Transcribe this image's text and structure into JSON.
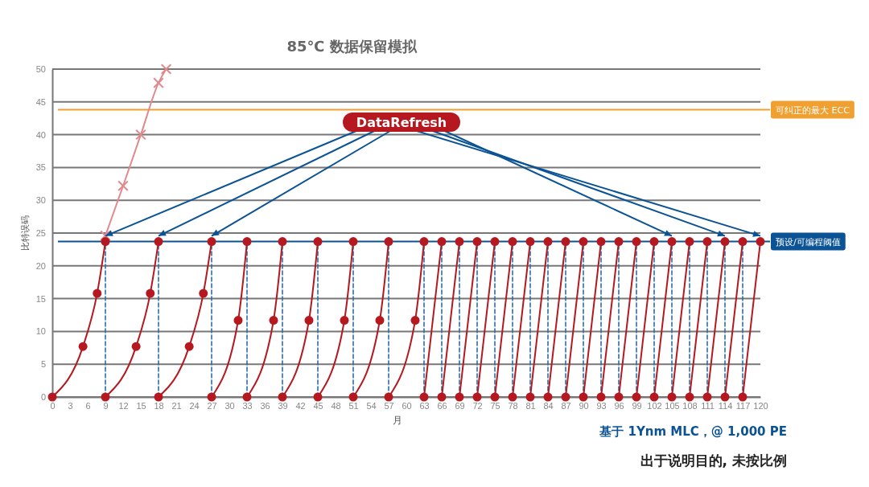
{
  "chart_data": {
    "type": "line",
    "title": "85℃ 数据保留模拟",
    "xlabel": "月",
    "ylabel": "比特误码",
    "xlim": [
      0,
      120
    ],
    "xticks": [
      0,
      3,
      6,
      9,
      12,
      15,
      18,
      21,
      24,
      27,
      30,
      33,
      36,
      39,
      42,
      45,
      48,
      51,
      54,
      57,
      60,
      63,
      66,
      69,
      72,
      75,
      78,
      81,
      84,
      87,
      90,
      93,
      96,
      99,
      102,
      105,
      108,
      111,
      114,
      117,
      120
    ],
    "ylim": [
      0,
      50
    ],
    "yticks": [
      0,
      5,
      10,
      15,
      20,
      25,
      30,
      35,
      40,
      45,
      50
    ],
    "grid": "y",
    "series": [
      {
        "color": "#b5191f",
        "marker": "circle",
        "x": [
          0,
          5.2,
          7.6,
          9
        ],
        "values": [
          0,
          7.7,
          15.8,
          23.7
        ]
      },
      {
        "color": "#b5191f",
        "marker": "circle",
        "x": [
          9,
          14.2,
          16.6,
          18
        ],
        "values": [
          0,
          7.7,
          15.8,
          23.7
        ]
      },
      {
        "color": "#b5191f",
        "marker": "circle",
        "x": [
          18,
          23.2,
          25.6,
          27
        ],
        "values": [
          0,
          7.7,
          15.8,
          23.7
        ]
      },
      {
        "color": "#b5191f",
        "marker": "circle",
        "x": [
          27,
          31.5,
          33
        ],
        "values": [
          0,
          11.7,
          23.7
        ]
      },
      {
        "color": "#b5191f",
        "marker": "circle",
        "x": [
          33,
          37.5,
          39
        ],
        "values": [
          0,
          11.7,
          23.7
        ]
      },
      {
        "color": "#b5191f",
        "marker": "circle",
        "x": [
          39,
          43.5,
          45
        ],
        "values": [
          0,
          11.7,
          23.7
        ]
      },
      {
        "color": "#b5191f",
        "marker": "circle",
        "x": [
          45,
          49.5,
          51
        ],
        "values": [
          0,
          11.7,
          23.7
        ]
      },
      {
        "color": "#b5191f",
        "marker": "circle",
        "x": [
          51,
          55.5,
          57
        ],
        "values": [
          0,
          11.7,
          23.7
        ]
      },
      {
        "color": "#b5191f",
        "marker": "circle",
        "x": [
          57,
          61.5,
          63
        ],
        "values": [
          0,
          11.7,
          23.7
        ]
      },
      {
        "color": "#b5191f",
        "marker": "circle",
        "x": [
          63,
          66
        ],
        "values": [
          0,
          23.7
        ]
      },
      {
        "color": "#b5191f",
        "marker": "circle",
        "x": [
          66,
          69
        ],
        "values": [
          0,
          23.7
        ]
      },
      {
        "color": "#b5191f",
        "marker": "circle",
        "x": [
          69,
          72
        ],
        "values": [
          0,
          23.7
        ]
      },
      {
        "color": "#b5191f",
        "marker": "circle",
        "x": [
          72,
          75
        ],
        "values": [
          0,
          23.7
        ]
      },
      {
        "color": "#b5191f",
        "marker": "circle",
        "x": [
          75,
          78
        ],
        "values": [
          0,
          23.7
        ]
      },
      {
        "color": "#b5191f",
        "marker": "circle",
        "x": [
          78,
          81
        ],
        "values": [
          0,
          23.7
        ]
      },
      {
        "color": "#b5191f",
        "marker": "circle",
        "x": [
          81,
          84
        ],
        "values": [
          0,
          23.7
        ]
      },
      {
        "color": "#b5191f",
        "marker": "circle",
        "x": [
          84,
          87
        ],
        "values": [
          0,
          23.7
        ]
      },
      {
        "color": "#b5191f",
        "marker": "circle",
        "x": [
          87,
          90
        ],
        "values": [
          0,
          23.7
        ]
      },
      {
        "color": "#b5191f",
        "marker": "circle",
        "x": [
          90,
          93
        ],
        "values": [
          0,
          23.7
        ]
      },
      {
        "color": "#b5191f",
        "marker": "circle",
        "x": [
          93,
          96
        ],
        "values": [
          0,
          23.7
        ]
      },
      {
        "color": "#b5191f",
        "marker": "circle",
        "x": [
          96,
          99
        ],
        "values": [
          0,
          23.7
        ]
      },
      {
        "color": "#b5191f",
        "marker": "circle",
        "x": [
          99,
          102
        ],
        "values": [
          0,
          23.7
        ]
      },
      {
        "color": "#b5191f",
        "marker": "circle",
        "x": [
          102,
          105
        ],
        "values": [
          0,
          23.7
        ]
      },
      {
        "color": "#b5191f",
        "marker": "circle",
        "x": [
          105,
          108
        ],
        "values": [
          0,
          23.7
        ]
      },
      {
        "color": "#b5191f",
        "marker": "circle",
        "x": [
          108,
          111
        ],
        "values": [
          0,
          23.7
        ]
      },
      {
        "color": "#b5191f",
        "marker": "circle",
        "x": [
          111,
          114
        ],
        "values": [
          0,
          23.7
        ]
      },
      {
        "color": "#b5191f",
        "marker": "circle",
        "x": [
          114,
          117
        ],
        "values": [
          0,
          23.7
        ]
      },
      {
        "color": "#b5191f",
        "marker": "circle",
        "x": [
          117,
          120
        ],
        "values": [
          0,
          23.7
        ]
      },
      {
        "color": "#e08a8e",
        "marker": "cross",
        "x": [
          9,
          12,
          15,
          18,
          19.3
        ],
        "values": [
          24.6,
          32.2,
          40,
          47.9,
          50
        ]
      },
      {
        "color": "#2e6da4",
        "marker": "none",
        "line_style": "dashed",
        "x": [
          9,
          9
        ],
        "values": [
          0,
          23.7
        ]
      },
      {
        "color": "#2e6da4",
        "marker": "none",
        "line_style": "dashed",
        "x": [
          18,
          18
        ],
        "values": [
          0,
          23.7
        ]
      },
      {
        "color": "#2e6da4",
        "marker": "none",
        "line_style": "dashed",
        "x": [
          27,
          27
        ],
        "values": [
          0,
          23.7
        ]
      },
      {
        "color": "#2e6da4",
        "marker": "none",
        "line_style": "dashed",
        "x": [
          33,
          33
        ],
        "values": [
          0,
          23.7
        ]
      },
      {
        "color": "#2e6da4",
        "marker": "none",
        "line_style": "dashed",
        "x": [
          39,
          39
        ],
        "values": [
          0,
          23.7
        ]
      },
      {
        "color": "#2e6da4",
        "marker": "none",
        "line_style": "dashed",
        "x": [
          45,
          45
        ],
        "values": [
          0,
          23.7
        ]
      },
      {
        "color": "#2e6da4",
        "marker": "none",
        "line_style": "dashed",
        "x": [
          51,
          51
        ],
        "values": [
          0,
          23.7
        ]
      },
      {
        "color": "#2e6da4",
        "marker": "none",
        "line_style": "dashed",
        "x": [
          57,
          57
        ],
        "values": [
          0,
          23.7
        ]
      },
      {
        "color": "#2e6da4",
        "marker": "none",
        "line_style": "dashed",
        "x": [
          63,
          63
        ],
        "values": [
          0,
          23.7
        ]
      },
      {
        "color": "#2e6da4",
        "marker": "none",
        "line_style": "dashed",
        "x": [
          66,
          66
        ],
        "values": [
          0,
          23.7
        ]
      },
      {
        "color": "#2e6da4",
        "marker": "none",
        "line_style": "dashed",
        "x": [
          69,
          69
        ],
        "values": [
          0,
          23.7
        ]
      },
      {
        "color": "#2e6da4",
        "marker": "none",
        "line_style": "dashed",
        "x": [
          72,
          72
        ],
        "values": [
          0,
          23.7
        ]
      },
      {
        "color": "#2e6da4",
        "marker": "none",
        "line_style": "dashed",
        "x": [
          75,
          75
        ],
        "values": [
          0,
          23.7
        ]
      },
      {
        "color": "#2e6da4",
        "marker": "none",
        "line_style": "dashed",
        "x": [
          78,
          78
        ],
        "values": [
          0,
          23.7
        ]
      },
      {
        "color": "#2e6da4",
        "marker": "none",
        "line_style": "dashed",
        "x": [
          81,
          81
        ],
        "values": [
          0,
          23.7
        ]
      },
      {
        "color": "#2e6da4",
        "marker": "none",
        "line_style": "dashed",
        "x": [
          84,
          84
        ],
        "values": [
          0,
          23.7
        ]
      },
      {
        "color": "#2e6da4",
        "marker": "none",
        "line_style": "dashed",
        "x": [
          87,
          87
        ],
        "values": [
          0,
          23.7
        ]
      },
      {
        "color": "#2e6da4",
        "marker": "none",
        "line_style": "dashed",
        "x": [
          90,
          90
        ],
        "values": [
          0,
          23.7
        ]
      },
      {
        "color": "#2e6da4",
        "marker": "none",
        "line_style": "dashed",
        "x": [
          93,
          93
        ],
        "values": [
          0,
          23.7
        ]
      },
      {
        "color": "#2e6da4",
        "marker": "none",
        "line_style": "dashed",
        "x": [
          96,
          96
        ],
        "values": [
          0,
          23.7
        ]
      },
      {
        "color": "#2e6da4",
        "marker": "none",
        "line_style": "dashed",
        "x": [
          99,
          99
        ],
        "values": [
          0,
          23.7
        ]
      },
      {
        "color": "#2e6da4",
        "marker": "none",
        "line_style": "dashed",
        "x": [
          102,
          102
        ],
        "values": [
          0,
          23.7
        ]
      },
      {
        "color": "#2e6da4",
        "marker": "none",
        "line_style": "dashed",
        "x": [
          105,
          105
        ],
        "values": [
          0,
          23.7
        ]
      },
      {
        "color": "#2e6da4",
        "marker": "none",
        "line_style": "dashed",
        "x": [
          108,
          108
        ],
        "values": [
          0,
          23.7
        ]
      },
      {
        "color": "#2e6da4",
        "marker": "none",
        "line_style": "dashed",
        "x": [
          111,
          111
        ],
        "values": [
          0,
          23.7
        ]
      },
      {
        "color": "#2e6da4",
        "marker": "none",
        "line_style": "dashed",
        "x": [
          114,
          114
        ],
        "values": [
          0,
          23.7
        ]
      },
      {
        "color": "#2e6da4",
        "marker": "none",
        "line_style": "dashed",
        "x": [
          117,
          117
        ],
        "values": [
          0,
          23.7
        ]
      }
    ],
    "ref_lines": [
      {
        "axis": "y",
        "value": 43.8,
        "label": "可纠正的最大 ECC",
        "color": "#f0a030"
      },
      {
        "axis": "y",
        "value": 23.7,
        "label": "预设/可编程阈值",
        "color": "#0b5394"
      }
    ],
    "annotations": [
      {
        "text": "DataRefresh",
        "x": 9,
        "y": 23.7
      },
      "基于 1Ynm MLC，@ 1,000 PE",
      "出于说明目的, 未按比例"
    ]
  }
}
